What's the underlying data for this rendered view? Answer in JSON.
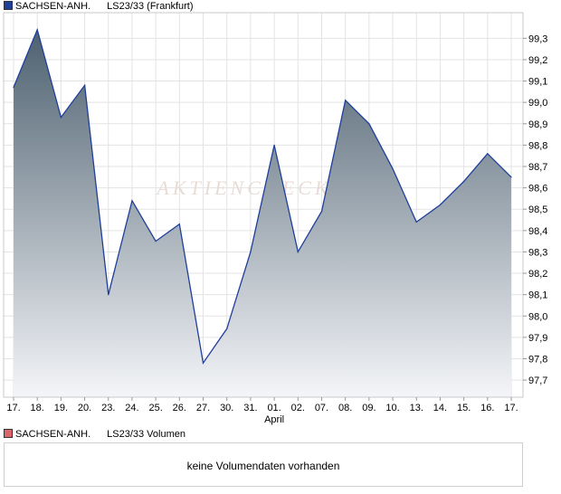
{
  "price_legend": {
    "name": "SACHSEN-ANH.",
    "series": "LS23/33 (Frankfurt)",
    "color": "#1e3f9a"
  },
  "volume_legend": {
    "name": "SACHSEN-ANH.",
    "series": "LS23/33 Volumen",
    "color": "#d9666a"
  },
  "volume_message": "keine Volumendaten vorhanden",
  "watermark": "AKTIENCHECK",
  "chart_data": {
    "type": "area",
    "title": "",
    "xlabel": "",
    "ylabel": "",
    "x_labels": [
      "17.",
      "18.",
      "19.",
      "20.",
      "23.",
      "24.",
      "25.",
      "26.",
      "27.",
      "30.",
      "31.",
      "01.",
      "02.",
      "07.",
      "08.",
      "09.",
      "10.",
      "13.",
      "14.",
      "15.",
      "16.",
      "17."
    ],
    "month_label": {
      "index": 11,
      "text": "April"
    },
    "y_ticks": [
      "97,7",
      "97,8",
      "97,9",
      "98,0",
      "98,1",
      "98,2",
      "98,3",
      "98,4",
      "98,5",
      "98,6",
      "98,7",
      "98,8",
      "98,9",
      "99,0",
      "99,1",
      "99,2",
      "99,3"
    ],
    "ylim": [
      97.62,
      99.42
    ],
    "grid": true,
    "y_axis_side": "right",
    "series": [
      {
        "values": [
          99.07,
          99.34,
          98.93,
          99.08,
          98.1,
          98.54,
          98.35,
          98.43,
          97.78,
          97.94,
          98.3,
          98.8,
          98.3,
          98.49,
          99.01,
          98.9,
          98.69,
          98.44,
          98.52,
          98.63,
          98.76,
          98.65
        ],
        "line_color": "#1e3f9a",
        "fill_top": "#4e6170",
        "fill_bottom": "#f4f5f8"
      }
    ]
  }
}
